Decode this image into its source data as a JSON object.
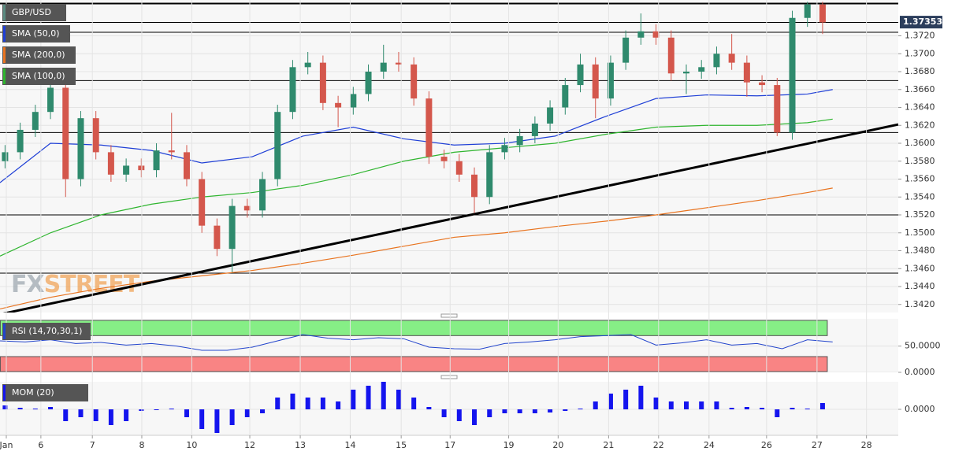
{
  "chart_data": [
    {
      "type": "candlestick",
      "title": "GBP/USD",
      "x": [
        1,
        4,
        7,
        10,
        13,
        16,
        19,
        22,
        25,
        28,
        31,
        34,
        37,
        40,
        43,
        46,
        49,
        52,
        55,
        58,
        61,
        64,
        67,
        70,
        73,
        76,
        79,
        82,
        85,
        88,
        91,
        94,
        97,
        100,
        103,
        106,
        109,
        112,
        115,
        118,
        121,
        124,
        127,
        130,
        133,
        136,
        139,
        142,
        145,
        148,
        151,
        154,
        157,
        160,
        163
      ],
      "open": [
        1.358,
        1.359,
        1.3615,
        1.3635,
        1.3662,
        1.356,
        1.3628,
        1.359,
        1.3565,
        1.3575,
        1.357,
        1.3592,
        1.359,
        1.356,
        1.3508,
        1.3482,
        1.353,
        1.3525,
        1.356,
        1.3635,
        1.3685,
        1.369,
        1.3645,
        1.364,
        1.3655,
        1.368,
        1.369,
        1.3688,
        1.365,
        1.3585,
        1.358,
        1.3565,
        1.354,
        1.359,
        1.3598,
        1.3608,
        1.3622,
        1.364,
        1.3665,
        1.3688,
        1.365,
        1.369,
        1.3718,
        1.3725,
        1.3718,
        1.3678,
        1.368,
        1.3685,
        1.37,
        1.369,
        1.3668,
        1.3665,
        1.3612,
        1.374,
        1.3755
      ],
      "high": [
        1.3598,
        1.3623,
        1.3643,
        1.367,
        1.367,
        1.3636,
        1.3636,
        1.3598,
        1.3583,
        1.3583,
        1.36,
        1.3634,
        1.3598,
        1.3568,
        1.3516,
        1.3538,
        1.3538,
        1.3568,
        1.3643,
        1.3693,
        1.3702,
        1.3698,
        1.3653,
        1.3663,
        1.3688,
        1.371,
        1.3702,
        1.3696,
        1.3658,
        1.3593,
        1.3588,
        1.3573,
        1.3598,
        1.3606,
        1.3616,
        1.363,
        1.3648,
        1.3673,
        1.37,
        1.3696,
        1.3698,
        1.3726,
        1.3745,
        1.3733,
        1.3726,
        1.3688,
        1.3693,
        1.3708,
        1.3722,
        1.3698,
        1.3676,
        1.3673,
        1.3748,
        1.3758,
        1.3758
      ],
      "low": [
        1.3572,
        1.3582,
        1.3607,
        1.3627,
        1.354,
        1.3552,
        1.3582,
        1.3557,
        1.3557,
        1.3562,
        1.3562,
        1.3582,
        1.3552,
        1.35,
        1.3474,
        1.3456,
        1.3517,
        1.3517,
        1.3552,
        1.3627,
        1.3677,
        1.3637,
        1.3618,
        1.3632,
        1.3647,
        1.3672,
        1.368,
        1.3642,
        1.3577,
        1.3572,
        1.3557,
        1.3522,
        1.3532,
        1.3582,
        1.359,
        1.36,
        1.3614,
        1.3632,
        1.3657,
        1.3628,
        1.3642,
        1.3682,
        1.371,
        1.371,
        1.367,
        1.3655,
        1.3672,
        1.3677,
        1.3682,
        1.3652,
        1.3657,
        1.3608,
        1.3604,
        1.373,
        1.3722
      ],
      "close": [
        1.359,
        1.3615,
        1.3635,
        1.3662,
        1.356,
        1.3628,
        1.359,
        1.3565,
        1.3575,
        1.357,
        1.3592,
        1.359,
        1.356,
        1.3508,
        1.3482,
        1.353,
        1.3525,
        1.356,
        1.3635,
        1.3685,
        1.369,
        1.3645,
        1.364,
        1.3655,
        1.368,
        1.369,
        1.3688,
        1.365,
        1.3585,
        1.358,
        1.3565,
        1.354,
        1.359,
        1.3598,
        1.3608,
        1.3622,
        1.364,
        1.3665,
        1.3688,
        1.365,
        1.369,
        1.3718,
        1.3725,
        1.3718,
        1.3678,
        1.368,
        1.3685,
        1.37,
        1.369,
        1.3668,
        1.3665,
        1.3612,
        1.374,
        1.3755,
        1.3735
      ],
      "color_up": "#2f8a6d",
      "color_down": "#d4574c",
      "xlim": [
        0,
        178
      ],
      "xticks": [
        {
          "value": 1.25,
          "label": "Jan"
        },
        {
          "value": 8.1,
          "label": "6"
        },
        {
          "value": 18.3,
          "label": "7"
        },
        {
          "value": 28.1,
          "label": "8"
        },
        {
          "value": 38,
          "label": "10"
        },
        {
          "value": 49.5,
          "label": "12"
        },
        {
          "value": 59.5,
          "label": "13"
        },
        {
          "value": 69.4,
          "label": "14"
        },
        {
          "value": 79.5,
          "label": "15"
        },
        {
          "value": 89.2,
          "label": "17"
        },
        {
          "value": 100.8,
          "label": "19"
        },
        {
          "value": 110.6,
          "label": "20"
        },
        {
          "value": 120.6,
          "label": "21"
        },
        {
          "value": 130.5,
          "label": "22"
        },
        {
          "value": 140.5,
          "label": "24"
        },
        {
          "value": 151.9,
          "label": "26"
        },
        {
          "value": 161.9,
          "label": "27"
        },
        {
          "value": 171.7,
          "label": "28"
        }
      ],
      "ylim": [
        1.3411,
        1.376
      ],
      "yticks": [
        {
          "value": 1.342,
          "label": "1.3420"
        },
        {
          "value": 1.344,
          "label": "1.3440"
        },
        {
          "value": 1.346,
          "label": "1.3460"
        },
        {
          "value": 1.348,
          "label": "1.3480"
        },
        {
          "value": 1.35,
          "label": "1.3500"
        },
        {
          "value": 1.352,
          "label": "1.3520"
        },
        {
          "value": 1.354,
          "label": "1.3540"
        },
        {
          "value": 1.356,
          "label": "1.3560"
        },
        {
          "value": 1.358,
          "label": "1.3580"
        },
        {
          "value": 1.36,
          "label": "1.3600"
        },
        {
          "value": 1.362,
          "label": "1.3620"
        },
        {
          "value": 1.364,
          "label": "1.3640"
        },
        {
          "value": 1.366,
          "label": "1.3660"
        },
        {
          "value": 1.368,
          "label": "1.3680"
        },
        {
          "value": 1.37,
          "label": "1.3700"
        },
        {
          "value": 1.372,
          "label": "1.3720"
        }
      ],
      "grid": true,
      "last_price": 1.37353,
      "levels": [
        1.3756,
        1.3735,
        1.3724,
        1.367,
        1.3612,
        1.352,
        1.3455
      ],
      "trendline": {
        "x": [
          0,
          178
        ],
        "values": [
          1.3409,
          1.3621
        ]
      },
      "series": [
        {
          "name": "SMA (50,0)",
          "color": "#1f3fd6",
          "x": [
            0,
            10,
            20,
            30,
            40,
            50,
            60,
            70,
            80,
            90,
            100,
            110,
            120,
            130,
            140,
            150,
            160,
            165
          ],
          "values": [
            1.3556,
            1.36,
            1.3598,
            1.3592,
            1.3578,
            1.3585,
            1.3608,
            1.3618,
            1.3605,
            1.3598,
            1.36,
            1.3608,
            1.363,
            1.365,
            1.3654,
            1.3653,
            1.3655,
            1.366
          ]
        },
        {
          "name": "SMA (200,0)",
          "color": "#e8731f",
          "x": [
            0,
            10,
            20,
            30,
            40,
            50,
            60,
            70,
            80,
            90,
            100,
            110,
            120,
            130,
            140,
            150,
            160,
            165
          ],
          "values": [
            1.3415,
            1.3428,
            1.3438,
            1.3446,
            1.3452,
            1.3458,
            1.3466,
            1.3475,
            1.3485,
            1.3495,
            1.35,
            1.3507,
            1.3513,
            1.352,
            1.3528,
            1.3536,
            1.3545,
            1.355
          ]
        },
        {
          "name": "SMA (100,0)",
          "color": "#2fb52f",
          "x": [
            0,
            10,
            20,
            30,
            40,
            50,
            60,
            70,
            80,
            90,
            100,
            110,
            120,
            130,
            140,
            150,
            160,
            165
          ],
          "values": [
            1.3474,
            1.35,
            1.352,
            1.3532,
            1.354,
            1.3545,
            1.3553,
            1.3565,
            1.358,
            1.359,
            1.3595,
            1.36,
            1.361,
            1.3618,
            1.362,
            1.362,
            1.3623,
            1.3627
          ]
        }
      ],
      "watermark": [
        "FX",
        "STREET"
      ]
    },
    {
      "type": "line",
      "title": "RSI (14,70,30,1)",
      "x": [
        0,
        5,
        10,
        15,
        20,
        25,
        30,
        35,
        40,
        45,
        50,
        55,
        60,
        65,
        70,
        75,
        80,
        85,
        90,
        95,
        100,
        105,
        110,
        115,
        120,
        125,
        130,
        135,
        140,
        145,
        150,
        155,
        160,
        165
      ],
      "values": [
        60,
        58,
        62,
        55,
        57,
        52,
        55,
        50,
        42,
        42,
        48,
        60,
        72,
        65,
        62,
        66,
        64,
        48,
        45,
        44,
        55,
        58,
        62,
        68,
        70,
        72,
        52,
        56,
        62,
        52,
        55,
        45,
        62,
        58
      ],
      "color": "#2244cc",
      "ylim": [
        0,
        102
      ],
      "yticks": [
        {
          "value": 50,
          "label": "50.0000"
        },
        {
          "value": 0,
          "label": "0.0000"
        }
      ],
      "overbought": 70,
      "oversold": 30,
      "overbought_color": "#86ee86",
      "oversold_color": "#f98484"
    },
    {
      "type": "bar",
      "title": "MOM (20)",
      "x": [
        1,
        4,
        7,
        10,
        13,
        16,
        19,
        22,
        25,
        28,
        31,
        34,
        37,
        40,
        43,
        46,
        49,
        52,
        55,
        58,
        61,
        64,
        67,
        70,
        73,
        76,
        79,
        82,
        85,
        88,
        91,
        94,
        97,
        100,
        103,
        106,
        109,
        112,
        115,
        118,
        121,
        124,
        127,
        130,
        133,
        136,
        139,
        142,
        145,
        148,
        151,
        154,
        157,
        160,
        163
      ],
      "values": [
        0.001,
        0.0004,
        0.0002,
        0.0006,
        -0.003,
        -0.002,
        -0.003,
        -0.004,
        -0.003,
        -0.0004,
        -0.0002,
        0.0002,
        -0.002,
        -0.005,
        -0.006,
        -0.004,
        -0.002,
        -0.001,
        0.003,
        0.004,
        0.003,
        0.003,
        0.002,
        0.005,
        0.006,
        0.007,
        0.005,
        0.003,
        0.0006,
        -0.002,
        -0.003,
        -0.004,
        -0.002,
        -0.001,
        -0.001,
        -0.001,
        -0.0008,
        -0.0004,
        0.0002,
        0.002,
        0.004,
        0.005,
        0.006,
        0.003,
        0.002,
        0.002,
        0.002,
        0.002,
        0.0004,
        0.0006,
        0.0004,
        -0.002,
        0.0004,
        0.0002,
        0.0016
      ],
      "color": "#1414ee",
      "ylim": [
        -0.0066,
        0.007
      ],
      "yticks": [
        {
          "value": 0,
          "label": "0.0000"
        }
      ]
    }
  ]
}
